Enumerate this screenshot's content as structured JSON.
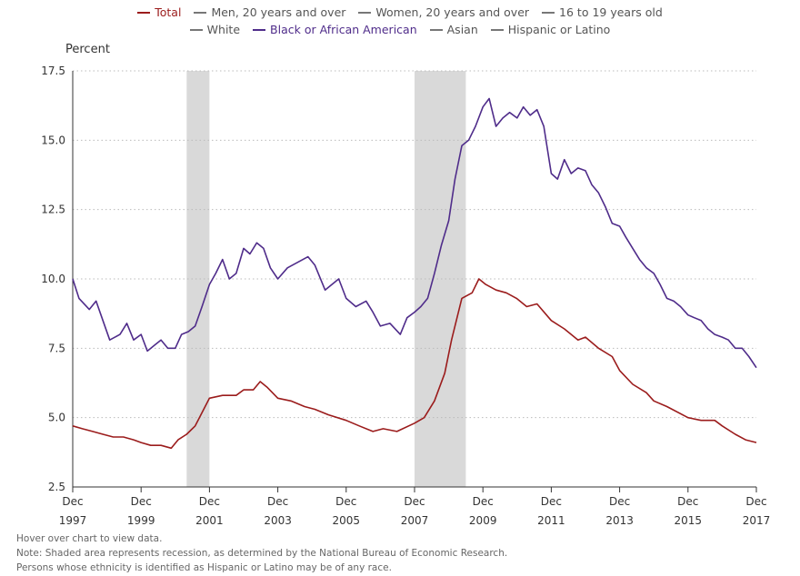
{
  "legend": [
    {
      "label": "Total",
      "color": "#9b1c1c",
      "active": true
    },
    {
      "label": "Men, 20 years and over",
      "color": "#777777",
      "active": false
    },
    {
      "label": "Women, 20 years and over",
      "color": "#777777",
      "active": false
    },
    {
      "label": "16 to 19 years old",
      "color": "#777777",
      "active": false
    },
    {
      "label": "White",
      "color": "#777777",
      "active": false
    },
    {
      "label": "Black or African American",
      "color": "#4f2c8a",
      "active": true
    },
    {
      "label": "Asian",
      "color": "#777777",
      "active": false
    },
    {
      "label": "Hispanic or Latino",
      "color": "#777777",
      "active": false
    }
  ],
  "notes": {
    "hover": "Hover over chart to view data.",
    "note1": "Note: Shaded area represents recession, as determined by the National Bureau of Economic Research.",
    "note2": "Persons whose ethnicity is identified as Hispanic or Latino may be of any race."
  },
  "chart_data": {
    "type": "line",
    "ylabel": "Percent",
    "ylim": [
      2.5,
      17.5
    ],
    "yticks": [
      "2.5",
      "5.0",
      "7.5",
      "10.0",
      "12.5",
      "15.0",
      "17.5"
    ],
    "xlim": [
      1997.917,
      2017.917
    ],
    "xticks": [
      {
        "x": 1997.917,
        "top": "Dec",
        "bottom": "1997"
      },
      {
        "x": 1999.917,
        "top": "Dec",
        "bottom": "1999"
      },
      {
        "x": 2001.917,
        "top": "Dec",
        "bottom": "2001"
      },
      {
        "x": 2003.917,
        "top": "Dec",
        "bottom": "2003"
      },
      {
        "x": 2005.917,
        "top": "Dec",
        "bottom": "2005"
      },
      {
        "x": 2007.917,
        "top": "Dec",
        "bottom": "2007"
      },
      {
        "x": 2009.917,
        "top": "Dec",
        "bottom": "2009"
      },
      {
        "x": 2011.917,
        "top": "Dec",
        "bottom": "2011"
      },
      {
        "x": 2013.917,
        "top": "Dec",
        "bottom": "2013"
      },
      {
        "x": 2015.917,
        "top": "Dec",
        "bottom": "2015"
      },
      {
        "x": 2017.917,
        "top": "Dec",
        "bottom": "2017"
      }
    ],
    "grid": "horizontal dotted",
    "recessions": [
      [
        2001.25,
        2001.917
      ],
      [
        2007.917,
        2009.417
      ]
    ],
    "series": [
      {
        "name": "Total",
        "color": "#9b1c1c",
        "points": [
          [
            1997.917,
            4.7
          ],
          [
            1998.2,
            4.6
          ],
          [
            1998.5,
            4.5
          ],
          [
            1998.8,
            4.4
          ],
          [
            1999.1,
            4.3
          ],
          [
            1999.4,
            4.3
          ],
          [
            1999.7,
            4.2
          ],
          [
            1999.917,
            4.1
          ],
          [
            2000.2,
            4.0
          ],
          [
            2000.5,
            4.0
          ],
          [
            2000.8,
            3.9
          ],
          [
            2001.0,
            4.2
          ],
          [
            2001.25,
            4.4
          ],
          [
            2001.5,
            4.7
          ],
          [
            2001.75,
            5.3
          ],
          [
            2001.917,
            5.7
          ],
          [
            2002.3,
            5.8
          ],
          [
            2002.7,
            5.8
          ],
          [
            2002.917,
            6.0
          ],
          [
            2003.2,
            6.0
          ],
          [
            2003.4,
            6.3
          ],
          [
            2003.6,
            6.1
          ],
          [
            2003.917,
            5.7
          ],
          [
            2004.3,
            5.6
          ],
          [
            2004.7,
            5.4
          ],
          [
            2005.0,
            5.3
          ],
          [
            2005.4,
            5.1
          ],
          [
            2005.917,
            4.9
          ],
          [
            2006.3,
            4.7
          ],
          [
            2006.7,
            4.5
          ],
          [
            2007.0,
            4.6
          ],
          [
            2007.4,
            4.5
          ],
          [
            2007.917,
            4.8
          ],
          [
            2008.2,
            5.0
          ],
          [
            2008.5,
            5.6
          ],
          [
            2008.8,
            6.6
          ],
          [
            2009.0,
            7.8
          ],
          [
            2009.3,
            9.3
          ],
          [
            2009.6,
            9.5
          ],
          [
            2009.8,
            10.0
          ],
          [
            2010.0,
            9.8
          ],
          [
            2010.3,
            9.6
          ],
          [
            2010.6,
            9.5
          ],
          [
            2010.9,
            9.3
          ],
          [
            2011.2,
            9.0
          ],
          [
            2011.5,
            9.1
          ],
          [
            2011.917,
            8.5
          ],
          [
            2012.3,
            8.2
          ],
          [
            2012.7,
            7.8
          ],
          [
            2012.917,
            7.9
          ],
          [
            2013.3,
            7.5
          ],
          [
            2013.7,
            7.2
          ],
          [
            2013.917,
            6.7
          ],
          [
            2014.3,
            6.2
          ],
          [
            2014.7,
            5.9
          ],
          [
            2014.917,
            5.6
          ],
          [
            2015.3,
            5.4
          ],
          [
            2015.917,
            5.0
          ],
          [
            2016.3,
            4.9
          ],
          [
            2016.7,
            4.9
          ],
          [
            2016.917,
            4.7
          ],
          [
            2017.3,
            4.4
          ],
          [
            2017.6,
            4.2
          ],
          [
            2017.917,
            4.1
          ]
        ]
      },
      {
        "name": "Black or African American",
        "color": "#4f2c8a",
        "points": [
          [
            1997.917,
            10.0
          ],
          [
            1998.1,
            9.3
          ],
          [
            1998.4,
            8.9
          ],
          [
            1998.6,
            9.2
          ],
          [
            1998.8,
            8.5
          ],
          [
            1999.0,
            7.8
          ],
          [
            1999.3,
            8.0
          ],
          [
            1999.5,
            8.4
          ],
          [
            1999.7,
            7.8
          ],
          [
            1999.917,
            8.0
          ],
          [
            2000.1,
            7.4
          ],
          [
            2000.3,
            7.6
          ],
          [
            2000.5,
            7.8
          ],
          [
            2000.7,
            7.5
          ],
          [
            2000.917,
            7.5
          ],
          [
            2001.1,
            8.0
          ],
          [
            2001.3,
            8.1
          ],
          [
            2001.5,
            8.3
          ],
          [
            2001.7,
            9.0
          ],
          [
            2001.917,
            9.8
          ],
          [
            2002.1,
            10.2
          ],
          [
            2002.3,
            10.7
          ],
          [
            2002.5,
            10.0
          ],
          [
            2002.7,
            10.2
          ],
          [
            2002.917,
            11.1
          ],
          [
            2003.1,
            10.9
          ],
          [
            2003.3,
            11.3
          ],
          [
            2003.5,
            11.1
          ],
          [
            2003.7,
            10.4
          ],
          [
            2003.917,
            10.0
          ],
          [
            2004.2,
            10.4
          ],
          [
            2004.5,
            10.6
          ],
          [
            2004.8,
            10.8
          ],
          [
            2005.0,
            10.5
          ],
          [
            2005.3,
            9.6
          ],
          [
            2005.5,
            9.8
          ],
          [
            2005.7,
            10.0
          ],
          [
            2005.917,
            9.3
          ],
          [
            2006.2,
            9.0
          ],
          [
            2006.5,
            9.2
          ],
          [
            2006.7,
            8.8
          ],
          [
            2006.917,
            8.3
          ],
          [
            2007.2,
            8.4
          ],
          [
            2007.5,
            8.0
          ],
          [
            2007.7,
            8.6
          ],
          [
            2007.917,
            8.8
          ],
          [
            2008.1,
            9.0
          ],
          [
            2008.3,
            9.3
          ],
          [
            2008.5,
            10.2
          ],
          [
            2008.7,
            11.2
          ],
          [
            2008.917,
            12.1
          ],
          [
            2009.1,
            13.6
          ],
          [
            2009.3,
            14.8
          ],
          [
            2009.5,
            15.0
          ],
          [
            2009.7,
            15.5
          ],
          [
            2009.917,
            16.2
          ],
          [
            2010.1,
            16.5
          ],
          [
            2010.3,
            15.5
          ],
          [
            2010.5,
            15.8
          ],
          [
            2010.7,
            16.0
          ],
          [
            2010.917,
            15.8
          ],
          [
            2011.1,
            16.2
          ],
          [
            2011.3,
            15.9
          ],
          [
            2011.5,
            16.1
          ],
          [
            2011.7,
            15.5
          ],
          [
            2011.917,
            13.8
          ],
          [
            2012.1,
            13.6
          ],
          [
            2012.3,
            14.3
          ],
          [
            2012.5,
            13.8
          ],
          [
            2012.7,
            14.0
          ],
          [
            2012.917,
            13.9
          ],
          [
            2013.1,
            13.4
          ],
          [
            2013.3,
            13.1
          ],
          [
            2013.5,
            12.6
          ],
          [
            2013.7,
            12.0
          ],
          [
            2013.917,
            11.9
          ],
          [
            2014.1,
            11.5
          ],
          [
            2014.3,
            11.1
          ],
          [
            2014.5,
            10.7
          ],
          [
            2014.7,
            10.4
          ],
          [
            2014.917,
            10.2
          ],
          [
            2015.1,
            9.8
          ],
          [
            2015.3,
            9.3
          ],
          [
            2015.5,
            9.2
          ],
          [
            2015.7,
            9.0
          ],
          [
            2015.917,
            8.7
          ],
          [
            2016.1,
            8.6
          ],
          [
            2016.3,
            8.5
          ],
          [
            2016.5,
            8.2
          ],
          [
            2016.7,
            8.0
          ],
          [
            2016.917,
            7.9
          ],
          [
            2017.1,
            7.8
          ],
          [
            2017.3,
            7.5
          ],
          [
            2017.5,
            7.5
          ],
          [
            2017.7,
            7.2
          ],
          [
            2017.917,
            6.8
          ]
        ]
      }
    ]
  }
}
